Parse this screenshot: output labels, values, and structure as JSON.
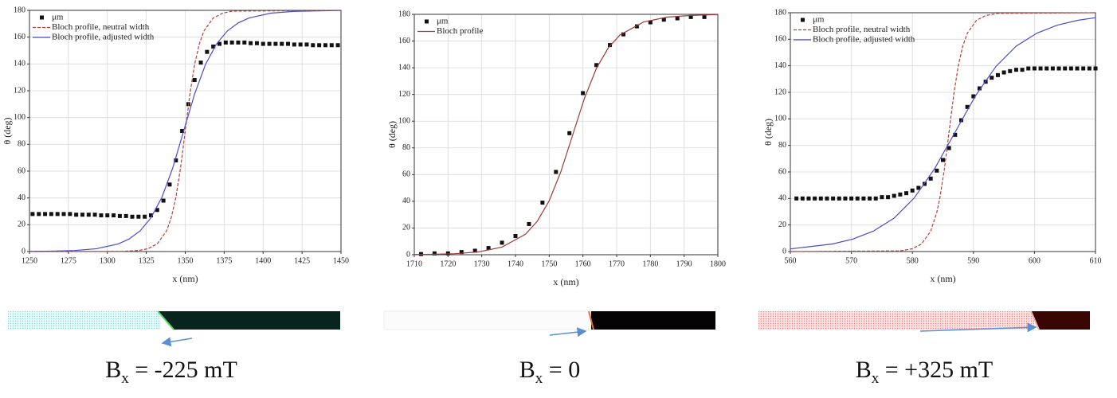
{
  "chart_data": [
    {
      "type": "scatter",
      "xlabel": "x (nm)",
      "ylabel": "θ (deg)",
      "xlim": [
        1250,
        1450
      ],
      "xticks": [
        1250,
        1275,
        1300,
        1325,
        1350,
        1375,
        1400,
        1425,
        1450
      ],
      "ylim": [
        0,
        180
      ],
      "yticks": [
        0,
        20,
        40,
        60,
        80,
        100,
        120,
        140,
        160,
        180
      ],
      "grid": true,
      "legend": "upper left",
      "caption": {
        "symbol": "B",
        "subscript": "x",
        "rest": " = -225 mT"
      },
      "series": [
        {
          "name": "μm",
          "type": "scatter",
          "color": "#111111",
          "x": [
            1252,
            1256,
            1260,
            1264,
            1268,
            1272,
            1276,
            1280,
            1284,
            1288,
            1292,
            1296,
            1300,
            1304,
            1308,
            1312,
            1316,
            1320,
            1324,
            1328,
            1332,
            1336,
            1340,
            1344,
            1348,
            1352,
            1356,
            1360,
            1364,
            1368,
            1372,
            1376,
            1380,
            1384,
            1388,
            1392,
            1396,
            1400,
            1404,
            1408,
            1412,
            1416,
            1420,
            1424,
            1428,
            1432,
            1436,
            1440,
            1444,
            1448
          ],
          "values": [
            28,
            28,
            28,
            28,
            28,
            28,
            28,
            27.5,
            27.5,
            27.5,
            27.5,
            27,
            27,
            27,
            26.5,
            26.5,
            26,
            26,
            26,
            27,
            31,
            38,
            50,
            68,
            90,
            110,
            128,
            141,
            149,
            153,
            155,
            156,
            156,
            156,
            156,
            155.5,
            155.5,
            155,
            155,
            155,
            155,
            155,
            154.5,
            154.5,
            154.5,
            154,
            154,
            154,
            154,
            154
          ]
        },
        {
          "name": "Bloch profile, neutral width",
          "type": "line",
          "style": "dashed",
          "color": "#b5403a",
          "x": [
            1250,
            1310,
            1320,
            1326,
            1332,
            1338,
            1341,
            1344,
            1347,
            1350,
            1353,
            1356,
            1359,
            1362,
            1368,
            1374,
            1380,
            1450
          ],
          "values": [
            0,
            0.15,
            0.77,
            2.1,
            5.7,
            15.4,
            25.2,
            40.4,
            62.5,
            90,
            117.5,
            139.6,
            154.8,
            164.6,
            174.3,
            177.9,
            179.4,
            180
          ]
        },
        {
          "name": "Bloch profile, adjusted width",
          "type": "line",
          "style": "solid",
          "color": "#4a4ad0",
          "x": [
            1250,
            1265,
            1279,
            1293,
            1307,
            1314,
            1321,
            1328,
            1335,
            1342,
            1349,
            1356,
            1363,
            1370,
            1377,
            1384,
            1391,
            1405,
            1419,
            1450
          ],
          "values": [
            0.1,
            0.28,
            0.77,
            2.1,
            5.7,
            9.4,
            15.4,
            25.2,
            40.4,
            62.5,
            90,
            117.5,
            139.6,
            154.8,
            164.6,
            170.6,
            174.3,
            177.9,
            179.2,
            179.9
          ]
        }
      ]
    },
    {
      "type": "scatter",
      "xlabel": "x (nm)",
      "ylabel": "θ (deg)",
      "xlim": [
        1710,
        1800
      ],
      "xticks": [
        1710,
        1720,
        1730,
        1740,
        1750,
        1760,
        1770,
        1780,
        1790,
        1800
      ],
      "ylim": [
        0,
        180
      ],
      "yticks": [
        0,
        20,
        40,
        60,
        80,
        100,
        120,
        140,
        160,
        180
      ],
      "grid": true,
      "legend": "upper left",
      "caption": {
        "symbol": "B",
        "subscript": "x",
        "rest": " = 0"
      },
      "series": [
        {
          "name": "μm",
          "type": "scatter",
          "color": "#111111",
          "x": [
            1712,
            1716,
            1720,
            1724,
            1728,
            1732,
            1736,
            1740,
            1744,
            1748,
            1752,
            1756,
            1760,
            1764,
            1768,
            1772,
            1776,
            1780,
            1784,
            1788,
            1792,
            1796
          ],
          "values": [
            0.5,
            1,
            1,
            2,
            3,
            5,
            9,
            14,
            23,
            39,
            62,
            91,
            121,
            142,
            157,
            165,
            171,
            174,
            176,
            177,
            178,
            178
          ]
        },
        {
          "name": "Bloch profile",
          "type": "line",
          "style": "solid",
          "color": "#9c3b3b",
          "x": [
            1710,
            1715,
            1722,
            1729,
            1736,
            1743,
            1746.5,
            1750,
            1753.5,
            1757,
            1760.5,
            1764,
            1767.5,
            1771,
            1778,
            1785,
            1792,
            1800
          ],
          "values": [
            0.14,
            0.28,
            0.77,
            2.1,
            5.7,
            15.4,
            25.2,
            40.4,
            62.5,
            90,
            117.5,
            139.6,
            154.8,
            164.6,
            174.3,
            177.9,
            179.2,
            179.8
          ]
        }
      ]
    },
    {
      "type": "scatter",
      "xlabel": "x (nm)",
      "ylabel": "θ (deg)",
      "xlim": [
        560,
        610
      ],
      "xticks": [
        560,
        570,
        580,
        590,
        600,
        610
      ],
      "ylim": [
        0,
        180
      ],
      "yticks": [
        0,
        20,
        40,
        60,
        80,
        100,
        120,
        140,
        160,
        180
      ],
      "grid": true,
      "legend": "upper left",
      "caption": {
        "symbol": "B",
        "subscript": "x",
        "rest": " = +325 mT"
      },
      "series": [
        {
          "name": "μm",
          "type": "scatter",
          "color": "#111111",
          "x": [
            561,
            562,
            563,
            564,
            565,
            566,
            567,
            568,
            569,
            570,
            571,
            572,
            573,
            574,
            575,
            576,
            577,
            578,
            579,
            580,
            581,
            582,
            583,
            584,
            585,
            586,
            587,
            588,
            589,
            590,
            591,
            592,
            593,
            594,
            595,
            596,
            597,
            598,
            599,
            600,
            601,
            602,
            603,
            604,
            605,
            606,
            607,
            608,
            609,
            610
          ],
          "values": [
            40,
            40,
            40,
            40,
            40,
            40,
            40,
            40,
            40,
            40,
            40,
            40,
            40,
            40,
            41,
            41,
            42,
            43,
            44,
            46,
            48,
            51,
            55,
            61,
            69,
            78,
            88,
            99,
            109,
            117,
            123,
            128,
            131,
            133,
            135,
            136,
            137,
            137,
            138,
            138,
            138,
            138,
            138,
            138,
            138,
            138,
            138,
            138,
            138,
            138
          ]
        },
        {
          "name": "Bloch profile, neutral width",
          "type": "line",
          "style": "dashed",
          "color": "#b5403a",
          "x": [
            560,
            578,
            580,
            581.5,
            583,
            584,
            584.5,
            585.25,
            586,
            586.75,
            587.5,
            588.25,
            589,
            590.5,
            592,
            594,
            610
          ],
          "values": [
            0,
            0.5,
            2.1,
            5.7,
            15.4,
            29.6,
            40.4,
            62.5,
            90,
            117.5,
            139.6,
            154.8,
            164.6,
            174.3,
            177.9,
            179.5,
            180
          ]
        },
        {
          "name": "Bloch profile, adjusted width",
          "type": "line",
          "style": "solid",
          "color": "#4a4ad0",
          "x": [
            560,
            566.9,
            570.25,
            573.6,
            577,
            580.3,
            583.65,
            587,
            590.35,
            593.7,
            597,
            600.4,
            603.7,
            607.1,
            610
          ],
          "values": [
            2,
            5.7,
            9.4,
            15.4,
            25.2,
            40.4,
            62.5,
            90,
            117.5,
            139.6,
            154.8,
            164.6,
            170.6,
            174.3,
            176.3
          ]
        }
      ]
    }
  ]
}
